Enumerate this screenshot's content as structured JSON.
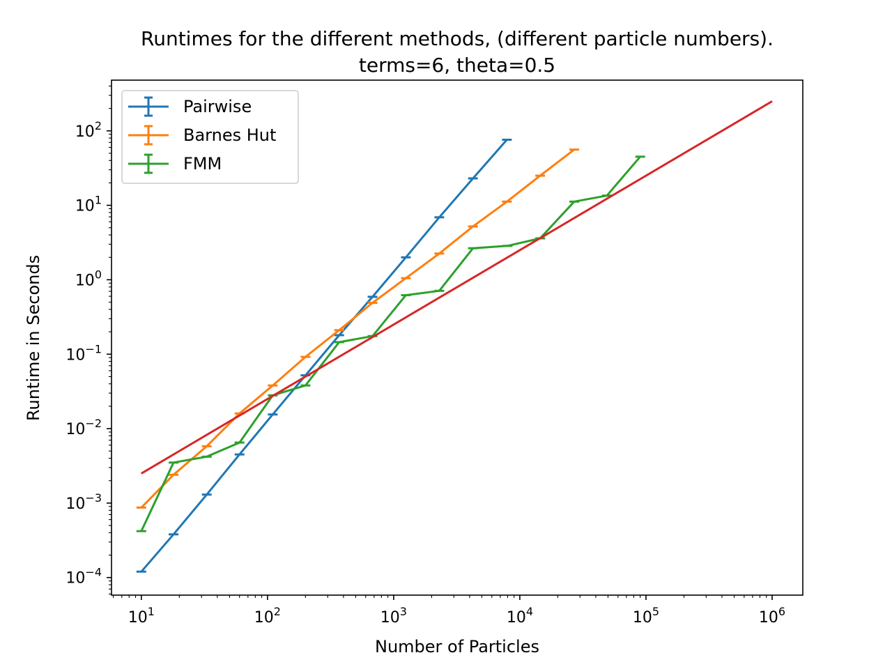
{
  "chart_data": {
    "type": "line",
    "title": "Runtimes for the different methods, (different particle numbers).",
    "subtitle": "terms=6, theta=0.5",
    "xlabel": "Number of Particles",
    "ylabel": "Runtime in Seconds",
    "xscale": "log",
    "yscale": "log",
    "xlim": [
      5.8,
      1750000
    ],
    "ylim": [
      5.8e-05,
      480
    ],
    "x_ticks": [
      {
        "value": 10,
        "base": "10",
        "exp": "1"
      },
      {
        "value": 100,
        "base": "10",
        "exp": "2"
      },
      {
        "value": 1000,
        "base": "10",
        "exp": "3"
      },
      {
        "value": 10000,
        "base": "10",
        "exp": "4"
      },
      {
        "value": 100000,
        "base": "10",
        "exp": "5"
      },
      {
        "value": 1000000,
        "base": "10",
        "exp": "6"
      }
    ],
    "y_ticks": [
      {
        "value": 0.0001,
        "base": "10",
        "exp": "−4"
      },
      {
        "value": 0.001,
        "base": "10",
        "exp": "−3"
      },
      {
        "value": 0.01,
        "base": "10",
        "exp": "−2"
      },
      {
        "value": 0.1,
        "base": "10",
        "exp": "−1"
      },
      {
        "value": 1,
        "base": "10",
        "exp": "0"
      },
      {
        "value": 10,
        "base": "10",
        "exp": "1"
      },
      {
        "value": 100,
        "base": "10",
        "exp": "2"
      }
    ],
    "grid": false,
    "legend_position": "top-left",
    "series": [
      {
        "name": "Pairwise",
        "color": "#1f77b4",
        "errorbars": true,
        "x": [
          10,
          18,
          33,
          60,
          110,
          200,
          370,
          680,
          1250,
          2300,
          4250,
          7900
        ],
        "y": [
          0.00012,
          0.00038,
          0.0013,
          0.0045,
          0.0155,
          0.052,
          0.18,
          0.59,
          2.0,
          6.9,
          23,
          76
        ]
      },
      {
        "name": "Barnes Hut",
        "color": "#ff7f0e",
        "errorbars": true,
        "x": [
          10,
          18,
          33,
          60,
          110,
          200,
          370,
          680,
          1250,
          2300,
          4250,
          7900,
          14500,
          27000
        ],
        "y": [
          0.00087,
          0.0024,
          0.0058,
          0.016,
          0.038,
          0.092,
          0.21,
          0.49,
          1.05,
          2.25,
          5.2,
          11.2,
          25,
          56
        ]
      },
      {
        "name": "FMM",
        "color": "#2ca02c",
        "errorbars": true,
        "x": [
          10,
          18,
          33,
          60,
          110,
          200,
          370,
          680,
          1250,
          2300,
          4250,
          8000,
          14500,
          27000,
          49000,
          90000
        ],
        "y": [
          0.00042,
          0.0035,
          0.0042,
          0.0065,
          0.028,
          0.038,
          0.145,
          0.175,
          0.62,
          0.71,
          2.65,
          2.85,
          3.6,
          11.2,
          13.5,
          45
        ]
      },
      {
        "color": "#d62728",
        "errorbars": false,
        "x": [
          10,
          1000000
        ],
        "y": [
          0.0025,
          250
        ]
      }
    ]
  }
}
